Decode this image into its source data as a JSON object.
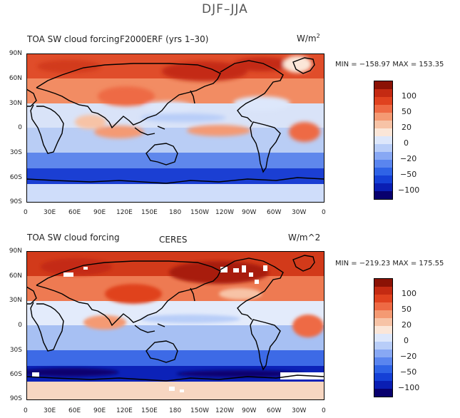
{
  "page_title": "DJF–JJA",
  "colorbar_colors": [
    "#08006e",
    "#0a1eb3",
    "#1540d6",
    "#2f63e6",
    "#5a85ef",
    "#88a8f4",
    "#b8cdf8",
    "#dde7fb",
    "#fbe6d8",
    "#f7c3a6",
    "#f49a73",
    "#ee6a44",
    "#e0421f",
    "#c42a12",
    "#8b1205"
  ],
  "colorbar_ticks": [
    "100",
    "50",
    "20",
    "0",
    "−20",
    "−50",
    "−100"
  ],
  "lat_labels": [
    "90N",
    "60N",
    "30N",
    "0",
    "30S",
    "60S",
    "90S"
  ],
  "lon_labels": [
    "0",
    "30E",
    "60E",
    "90E",
    "120E",
    "150E",
    "180",
    "150W",
    "120W",
    "90W",
    "60W",
    "30W",
    "0"
  ],
  "panels": [
    {
      "title_left": "TOA SW cloud forcing",
      "title_center": "F2000ERF (yrs 1–30)",
      "units": "W/m",
      "units_sup": "2",
      "stats": "MIN = −158.97  MAX = 153.35"
    },
    {
      "title_left": "TOA SW cloud forcing",
      "title_center": "CERES",
      "units": "W/m^2",
      "units_sup": "",
      "stats": "MIN = −219.23  MAX = 175.55"
    }
  ]
}
